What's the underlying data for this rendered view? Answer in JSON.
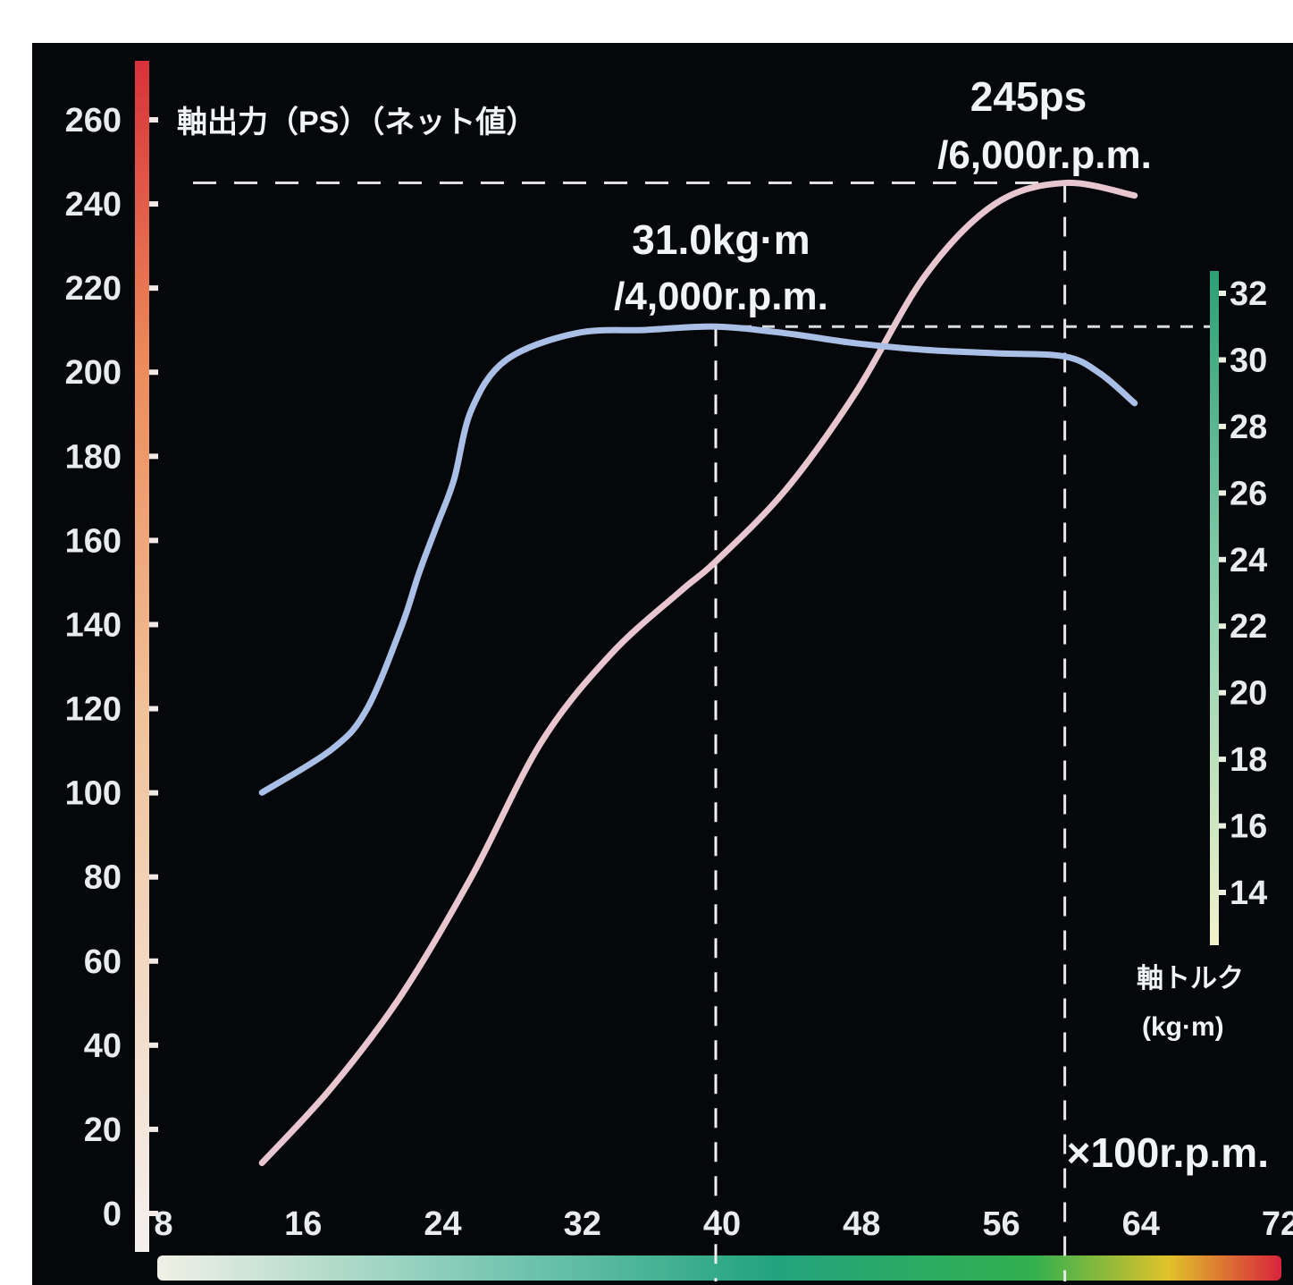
{
  "chart_data": {
    "type": "line",
    "title": "",
    "xlabel": "×100r.p.m.",
    "ylabel_left": "軸出力（PS）（ネット値）",
    "ylabel_right_line1": "軸トルク",
    "ylabel_right_line2": "(kg·m)",
    "x_ticks": [
      "8",
      "16",
      "24",
      "32",
      "40",
      "48",
      "56",
      "64",
      "72"
    ],
    "y_left_ticks": [
      "0",
      "20",
      "40",
      "60",
      "80",
      "100",
      "120",
      "140",
      "160",
      "180",
      "200",
      "220",
      "240",
      "260"
    ],
    "y_right_ticks": [
      "14",
      "16",
      "18",
      "20",
      "22",
      "24",
      "26",
      "28",
      "30",
      "32"
    ],
    "xlim": [
      8,
      72
    ],
    "ylim_left": [
      0,
      260
    ],
    "ylim_right": [
      14,
      32
    ],
    "grid": false,
    "series": [
      {
        "axis": "left",
        "color": "#e8c6cf",
        "x": [
          14,
          18,
          22,
          26,
          30,
          34,
          38,
          40,
          44,
          48,
          52,
          56,
          60,
          64
        ],
        "y": [
          12,
          30,
          52,
          80,
          112,
          133,
          148,
          155,
          172,
          195,
          223,
          240,
          245,
          242
        ]
      },
      {
        "axis": "right",
        "color": "#a9bfe6",
        "x": [
          14,
          18,
          20,
          22,
          23,
          24,
          25,
          26,
          28,
          32,
          36,
          40,
          44,
          48,
          52,
          56,
          60,
          62,
          64
        ],
        "y": [
          17.0,
          18.3,
          19.5,
          22.0,
          23.6,
          25.0,
          26.4,
          28.5,
          30.0,
          30.8,
          30.9,
          31.0,
          30.8,
          30.5,
          30.3,
          30.2,
          30.1,
          29.6,
          28.7
        ]
      }
    ],
    "annotations": [
      {
        "line1": "245ps",
        "line2": "/6,000r.p.m."
      },
      {
        "line1": "31.0kg·m",
        "line2": "/4,000r.p.m."
      }
    ],
    "colors": {
      "left_axis_bar_bottom": "#f4f0ee",
      "left_axis_bar_top": "#d8323a",
      "right_axis_bar_bottom": "#f2f2cc",
      "right_axis_bar_top": "#2c9f77"
    }
  }
}
